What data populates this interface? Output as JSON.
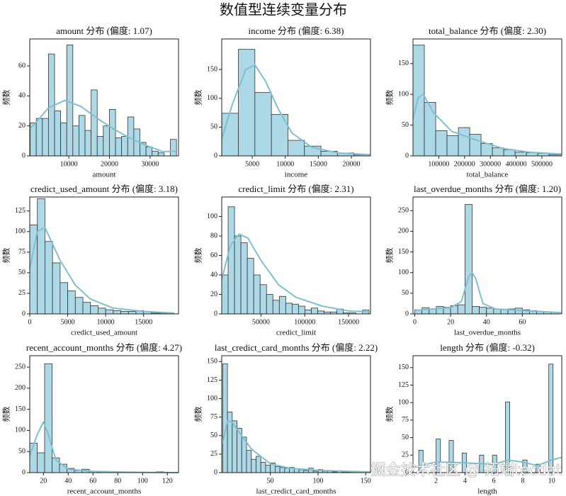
{
  "title": "数值型连续变量分布",
  "watermark": "掘金技术社区 @ 拓端tecdat",
  "chart_data": [
    {
      "type": "histogram",
      "title": "amount 分布 (偏度: 1.07)",
      "xlabel": "amount",
      "ylabel": "频数",
      "bins": [
        500,
        2000,
        3500,
        5000,
        6500,
        8000,
        9500,
        11000,
        12500,
        14000,
        15500,
        17000,
        18500,
        20000,
        21500,
        23000,
        24500,
        26000,
        27500,
        29000,
        30500,
        32000,
        33500,
        35000,
        36500
      ],
      "values": [
        22,
        25,
        25,
        68,
        30,
        22,
        74,
        20,
        27,
        17,
        44,
        13,
        20,
        31,
        12,
        13,
        26,
        18,
        9,
        6,
        3,
        2,
        0,
        11
      ],
      "color": "#add8e6",
      "edgecolor": "#333333",
      "kde": {
        "x": [
          500,
          5000,
          9000,
          13000,
          17000,
          21000,
          25000,
          29000,
          33000,
          36500
        ],
        "y": [
          18,
          32,
          37,
          33,
          25,
          18,
          12,
          7,
          3,
          3
        ],
        "color": "#7fbfd2"
      },
      "xlim": [
        400,
        37000
      ],
      "ylim": [
        0,
        78
      ],
      "xticks": [
        10000,
        20000,
        30000
      ],
      "yticks": [
        0,
        20,
        40,
        60
      ]
    },
    {
      "type": "histogram",
      "title": "income 分布 (偏度: 6.38)",
      "xlabel": "income",
      "ylabel": "频数",
      "bins": [
        400,
        2900,
        5400,
        7900,
        10400,
        12900,
        15400,
        17900,
        20400,
        22900
      ],
      "values": [
        74,
        185,
        110,
        72,
        27,
        17,
        8,
        5,
        2
      ],
      "color": "#add8e6",
      "edgecolor": "#333333",
      "kde": {
        "x": [
          400,
          2000,
          4000,
          5400,
          7000,
          9000,
          11000,
          14000,
          18000,
          22900
        ],
        "y": [
          30,
          90,
          150,
          158,
          130,
          80,
          40,
          15,
          5,
          2
        ],
        "color": "#7fbfd2"
      },
      "xlim": [
        380,
        22900
      ],
      "ylim": [
        0,
        203
      ],
      "xticks": [
        5000,
        10000,
        15000,
        20000
      ],
      "yticks": [
        0,
        50,
        100,
        150
      ]
    },
    {
      "type": "histogram",
      "title": "total_balance 分布 (偏度: 2.30)",
      "xlabel": "total_balance",
      "ylabel": "频数",
      "bins": [
        0,
        44000,
        88000,
        132000,
        176000,
        220000,
        264000,
        308000,
        352000,
        396000,
        440000,
        484000,
        528000,
        572000
      ],
      "values": [
        180,
        87,
        41,
        33,
        46,
        35,
        20,
        13,
        10,
        6,
        5,
        4,
        2
      ],
      "color": "#add8e6",
      "edgecolor": "#333333",
      "kde": {
        "x": [
          0,
          20000,
          40000,
          80000,
          150000,
          250000,
          350000,
          450000,
          577000
        ],
        "y": [
          60,
          95,
          100,
          70,
          40,
          25,
          12,
          6,
          3
        ],
        "color": "#7fbfd2"
      },
      "xlim": [
        0,
        577000
      ],
      "ylim": [
        0,
        190
      ],
      "xticks": [
        100000,
        200000,
        300000,
        400000,
        500000
      ],
      "yticks": [
        0,
        50,
        100,
        150
      ]
    },
    {
      "type": "histogram",
      "title": "credict_used_amount 分布 (偏度: 3.18)",
      "xlabel": "credict_used_amount",
      "ylabel": "频数",
      "bins": [
        0,
        1000,
        2000,
        3000,
        4000,
        5000,
        6000,
        7000,
        8000,
        9000,
        10000,
        11000,
        12000,
        13000,
        14000,
        15000,
        16000,
        17000,
        18000,
        19000
      ],
      "values": [
        108,
        140,
        88,
        62,
        38,
        28,
        20,
        14,
        10,
        7,
        5,
        4,
        3,
        3,
        4,
        3,
        1,
        1,
        1
      ],
      "color": "#add8e6",
      "edgecolor": "#333333",
      "kde": {
        "x": [
          0,
          1000,
          2000,
          4000,
          6000,
          8000,
          11000,
          15000,
          19000
        ],
        "y": [
          55,
          100,
          105,
          65,
          35,
          18,
          7,
          3,
          1
        ],
        "color": "#7fbfd2"
      },
      "xlim": [
        0,
        19600
      ],
      "ylim": [
        0,
        142
      ],
      "xticks": [
        0,
        5000,
        10000,
        15000
      ],
      "yticks": [
        0,
        25,
        50,
        75,
        100,
        125
      ]
    },
    {
      "type": "histogram",
      "title": "credict_limit 分布 (偏度: 2.31)",
      "xlabel": "credict_limit",
      "ylabel": "频数",
      "bins": [
        5300,
        12600,
        19900,
        27200,
        34500,
        41800,
        49100,
        56400,
        63700,
        71000,
        78300,
        85600,
        92900,
        100200,
        107500,
        114800,
        122100,
        129400,
        136700,
        144000,
        151300,
        158600,
        165900,
        173200
      ],
      "values": [
        40,
        110,
        80,
        73,
        57,
        40,
        30,
        20,
        14,
        18,
        11,
        10,
        8,
        4,
        6,
        3,
        2,
        2,
        5,
        1,
        1,
        0,
        4
      ],
      "color": "#add8e6",
      "edgecolor": "#333333",
      "kde": {
        "x": [
          5300,
          15000,
          25000,
          35000,
          50000,
          70000,
          90000,
          120000,
          150000,
          175000
        ],
        "y": [
          35,
          70,
          82,
          78,
          55,
          30,
          17,
          8,
          3,
          2
        ],
        "color": "#7fbfd2"
      },
      "xlim": [
        5300,
        175000
      ],
      "ylim": [
        0,
        120
      ],
      "xticks": [
        50000,
        100000,
        150000
      ],
      "yticks": [
        0,
        20,
        40,
        60,
        80,
        100
      ]
    },
    {
      "type": "histogram",
      "title": "last_overdue_months 分布 (偏度: 1.20)",
      "xlabel": "last_overdue_months",
      "ylabel": "频数",
      "bins": [
        0,
        4,
        8,
        12,
        16,
        20,
        24,
        28,
        32,
        36,
        40,
        44,
        48,
        52,
        56,
        60,
        64,
        68,
        72,
        76,
        80
      ],
      "values": [
        10,
        15,
        12,
        18,
        16,
        20,
        22,
        265,
        18,
        16,
        14,
        12,
        10,
        12,
        14,
        10,
        8,
        6,
        5,
        4
      ],
      "color": "#add8e6",
      "edgecolor": "#333333",
      "kde": {
        "x": [
          0,
          10,
          20,
          26,
          30,
          32,
          34,
          38,
          45,
          60,
          82
        ],
        "y": [
          8,
          12,
          15,
          30,
          90,
          100,
          85,
          25,
          12,
          8,
          3
        ],
        "color": "#7fbfd2"
      },
      "xlim": [
        -1,
        82
      ],
      "ylim": [
        0,
        283
      ],
      "xticks": [
        0,
        20,
        40,
        60
      ],
      "yticks": [
        0,
        50,
        100,
        150,
        200,
        250
      ]
    },
    {
      "type": "histogram",
      "title": "recent_account_months 分布 (偏度: 4.27)",
      "xlabel": "recent_account_months",
      "ylabel": "频数",
      "bins": [
        9,
        15,
        21,
        27,
        33,
        39,
        45,
        51,
        57,
        63,
        69,
        75,
        81,
        87,
        93,
        99,
        105,
        111,
        117,
        123,
        129
      ],
      "values": [
        70,
        47,
        258,
        35,
        20,
        10,
        5,
        8,
        3,
        1,
        1,
        1,
        0,
        0,
        0,
        0,
        1,
        2,
        1,
        0
      ],
      "color": "#add8e6",
      "edgecolor": "#333333",
      "kde": {
        "x": [
          9,
          15,
          20,
          24,
          30,
          40,
          60,
          90,
          129
        ],
        "y": [
          40,
          90,
          120,
          90,
          30,
          8,
          3,
          1,
          0
        ],
        "color": "#7fbfd2"
      },
      "xlim": [
        9,
        129
      ],
      "ylim": [
        0,
        277
      ],
      "xticks": [
        20,
        40,
        60,
        80,
        100,
        120
      ],
      "yticks": [
        0,
        50,
        100,
        150,
        200,
        250
      ]
    },
    {
      "type": "histogram",
      "title": "last_credict_card_months 分布 (偏度: 2.22)",
      "xlabel": "last_credict_card_months",
      "ylabel": "频数",
      "bins": [
        0,
        5,
        10,
        15,
        20,
        25,
        30,
        35,
        40,
        45,
        50,
        55,
        60,
        65,
        70,
        75,
        80,
        85,
        90,
        95,
        100,
        105,
        110,
        115,
        120,
        125,
        130,
        135,
        140,
        145,
        150,
        155
      ],
      "values": [
        147,
        82,
        70,
        60,
        48,
        30,
        18,
        22,
        14,
        10,
        13,
        8,
        7,
        6,
        7,
        5,
        4,
        3,
        6,
        2,
        4,
        2,
        3,
        1,
        2,
        1,
        1,
        2,
        0,
        1,
        1
      ],
      "color": "#add8e6",
      "edgecolor": "#333333",
      "kde": {
        "x": [
          0,
          5,
          10,
          20,
          30,
          50,
          70,
          100,
          155
        ],
        "y": [
          40,
          70,
          68,
          50,
          32,
          12,
          6,
          3,
          1
        ],
        "color": "#7fbfd2"
      },
      "xlim": [
        -1,
        155
      ],
      "ylim": [
        0,
        158
      ],
      "xticks": [
        50,
        100,
        150
      ],
      "yticks": [
        0,
        25,
        50,
        75,
        100,
        125,
        150
      ]
    },
    {
      "type": "histogram",
      "title": "length 分布 (偏度: -0.32)",
      "xlabel": "length",
      "ylabel": "频数",
      "bins": [
        0.5,
        0.8,
        1.1,
        1.4,
        1.7,
        2.0,
        2.3,
        2.6,
        2.9,
        3.2,
        3.5,
        3.8,
        4.1,
        4.4,
        4.7,
        5.0,
        5.3,
        5.6,
        5.9,
        6.2,
        6.5,
        6.8,
        7.1,
        7.4,
        7.7,
        8.0,
        8.3,
        8.6,
        8.9,
        9.2,
        9.5,
        9.8,
        10.1,
        10.4,
        10.7
      ],
      "values": [
        0,
        32,
        0,
        0,
        0,
        48,
        0,
        0,
        46,
        0,
        0,
        28,
        0,
        0,
        0,
        25,
        0,
        0,
        25,
        0,
        0,
        101,
        0,
        0,
        0,
        18,
        0,
        0,
        12,
        0,
        0,
        155,
        0,
        0
      ],
      "color": "#add8e6",
      "edgecolor": "#333333",
      "kde": {
        "x": [
          0.5,
          2,
          3,
          4,
          5,
          6,
          7,
          8,
          9,
          10,
          10.7
        ],
        "y": [
          8,
          15,
          15,
          14,
          13,
          12,
          18,
          15,
          10,
          18,
          22
        ],
        "color": "#7fbfd2"
      },
      "xlim": [
        0.4,
        10.7
      ],
      "ylim": [
        0,
        167
      ],
      "xticks": [
        2,
        4,
        6,
        8,
        10
      ],
      "yticks": [
        0,
        25,
        50,
        75,
        100,
        125,
        150
      ]
    }
  ]
}
